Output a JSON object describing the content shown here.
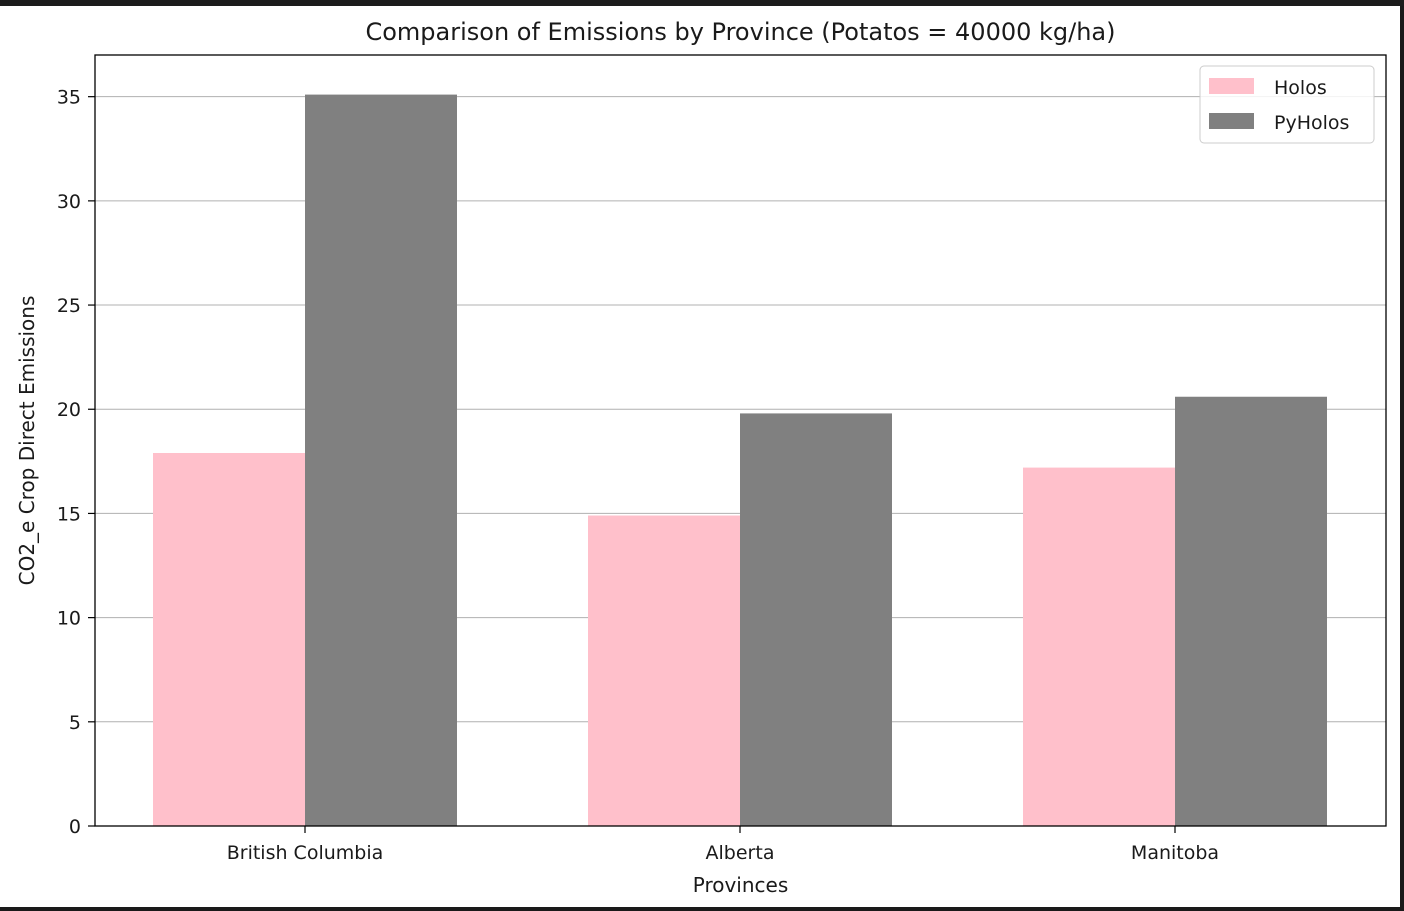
{
  "chart_data": {
    "type": "bar",
    "title": "Comparison of Emissions by Province (Potatos = 40000 kg/ha)",
    "xlabel": "Provinces",
    "ylabel": "CO2_e Crop Direct Emissions",
    "categories": [
      "British Columbia",
      "Alberta",
      "Manitoba"
    ],
    "series": [
      {
        "name": "Holos",
        "color": "#ffc0cb",
        "values": [
          17.9,
          14.9,
          17.2
        ]
      },
      {
        "name": "PyHolos",
        "color": "#808080",
        "values": [
          35.1,
          19.8,
          20.6
        ]
      }
    ],
    "ylim": [
      0,
      37
    ],
    "yticks": [
      0,
      5,
      10,
      15,
      20,
      25,
      30,
      35
    ],
    "grid": "y",
    "legend": "top-right"
  }
}
